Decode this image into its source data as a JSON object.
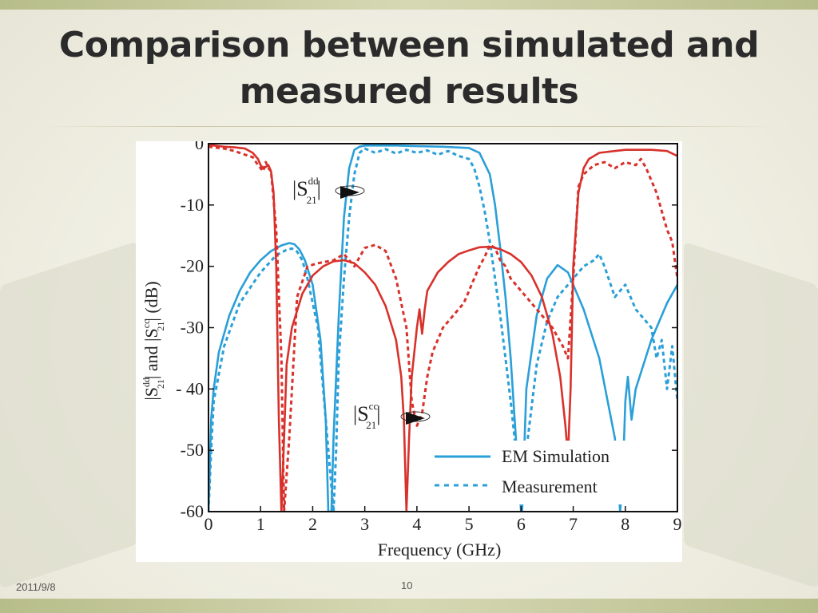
{
  "slide": {
    "title_line1": "Comparison between simulated and",
    "title_line2": "measured results",
    "date": "2011/9/8",
    "page_number": "10"
  },
  "colors": {
    "blue": "#2a9fd8",
    "red": "#d8312b",
    "accent_band": "#c8cc9c"
  },
  "chart_data": {
    "type": "line",
    "xlabel": "Frequency (GHz)",
    "ylabel_parts": [
      "|S",
      "dd",
      "21",
      "| and |S",
      "cc",
      "21",
      "| (dB)"
    ],
    "xlim": [
      0,
      9
    ],
    "ylim": [
      -60,
      0
    ],
    "x_ticks": [
      "0",
      "1",
      "2",
      "3",
      "4",
      "5",
      "6",
      "7",
      "8",
      "9"
    ],
    "y_ticks": [
      "0",
      "-10",
      "-20",
      "-30",
      "- 40",
      "-50",
      "-60"
    ],
    "grid": false,
    "legend_position": "bottom-right",
    "legend": [
      {
        "label": "EM Simulation",
        "style": "solid"
      },
      {
        "label": "Measurement",
        "style": "dashed"
      }
    ],
    "annotations": [
      {
        "base": "|S",
        "sup": "dd",
        "sub": "21",
        "tail": "|",
        "points_to": [
          2.7,
          -7
        ]
      },
      {
        "base": "|S",
        "sup": "cc",
        "sub": "21",
        "tail": "|",
        "points_to": [
          4.1,
          -44.5
        ]
      }
    ],
    "series": [
      {
        "label": "Sdd21 EM Simulation",
        "color": "blue",
        "dash": false,
        "x": [
          0.0,
          0.05,
          0.1,
          0.2,
          0.4,
          0.6,
          0.8,
          1.0,
          1.2,
          1.4,
          1.55,
          1.65,
          1.75,
          1.85,
          2.0,
          2.15,
          2.25,
          2.3,
          2.33,
          2.36,
          2.4,
          2.5,
          2.6,
          2.7,
          2.8,
          2.9,
          3.0,
          3.3,
          3.6,
          4.0,
          4.5,
          5.0,
          5.2,
          5.4,
          5.5,
          5.6,
          5.7,
          5.8,
          5.9,
          6.0,
          6.02,
          6.1,
          6.3,
          6.5,
          6.7,
          6.9,
          7.2,
          7.5,
          7.8,
          7.9,
          7.95,
          8.0,
          8.05,
          8.12,
          8.2,
          8.5,
          8.8,
          9.0
        ],
        "y": [
          -60,
          -45,
          -40,
          -34,
          -28,
          -24,
          -21,
          -19,
          -17.5,
          -16.6,
          -16.2,
          -16.4,
          -17.3,
          -19,
          -23,
          -32,
          -45,
          -60,
          -60,
          -60,
          -48,
          -28,
          -12,
          -4,
          -1,
          -0.5,
          -0.3,
          -0.3,
          -0.3,
          -0.4,
          -0.5,
          -0.7,
          -1.5,
          -5,
          -10,
          -17,
          -25,
          -35,
          -48,
          -60,
          -60,
          -40,
          -28,
          -22,
          -19.8,
          -21,
          -27,
          -35,
          -48,
          -60,
          -55,
          -42,
          -38,
          -45,
          -40,
          -32,
          -26,
          -23
        ]
      },
      {
        "label": "Sdd21 Measurement",
        "color": "blue",
        "dash": true,
        "x": [
          0.0,
          0.05,
          0.1,
          0.3,
          0.6,
          1.0,
          1.3,
          1.5,
          1.6,
          1.7,
          1.8,
          1.9,
          2.1,
          2.25,
          2.35,
          2.4,
          2.45,
          2.5,
          2.6,
          2.7,
          2.8,
          2.9,
          3.0,
          3.2,
          3.4,
          3.6,
          3.8,
          4.0,
          4.2,
          4.4,
          4.6,
          4.8,
          5.0,
          5.1,
          5.2,
          5.3,
          5.4,
          5.5,
          5.6,
          5.7,
          5.8,
          5.9,
          6.0,
          6.05,
          6.1,
          6.3,
          6.5,
          6.7,
          6.8,
          7.0,
          7.2,
          7.4,
          7.5,
          7.6,
          7.8,
          8.0,
          8.2,
          8.4,
          8.5,
          8.6,
          8.7,
          8.8,
          8.9,
          9.0
        ],
        "y": [
          -60,
          -50,
          -42,
          -33,
          -26,
          -21,
          -18.2,
          -17.3,
          -17.1,
          -17.6,
          -19,
          -22,
          -30,
          -45,
          -55,
          -60,
          -50,
          -35,
          -22,
          -12,
          -5,
          -1.5,
          -0.8,
          -1.5,
          -0.9,
          -1.6,
          -1.0,
          -1.5,
          -1.1,
          -1.8,
          -1.2,
          -2.0,
          -2.5,
          -4,
          -7,
          -11,
          -16,
          -22,
          -28,
          -35,
          -42,
          -50,
          -56,
          -58,
          -50,
          -36,
          -29,
          -25,
          -24,
          -22,
          -20,
          -19,
          -18,
          -20,
          -25,
          -23,
          -27,
          -29,
          -30,
          -35,
          -32,
          -40,
          -33,
          -42
        ]
      },
      {
        "label": "Scc21 EM Simulation",
        "color": "red",
        "dash": false,
        "x": [
          0.0,
          0.1,
          0.3,
          0.5,
          0.7,
          0.85,
          0.95,
          1.0,
          1.05,
          1.1,
          1.15,
          1.2,
          1.25,
          1.3,
          1.35,
          1.4,
          1.45,
          1.5,
          1.6,
          1.8,
          2.0,
          2.2,
          2.4,
          2.6,
          2.8,
          3.0,
          3.2,
          3.4,
          3.6,
          3.7,
          3.75,
          3.8,
          3.85,
          3.9,
          4.0,
          4.05,
          4.1,
          4.15,
          4.2,
          4.4,
          4.6,
          4.8,
          5.0,
          5.2,
          5.4,
          5.6,
          5.8,
          6.0,
          6.2,
          6.4,
          6.6,
          6.75,
          6.85,
          6.9,
          6.95,
          7.0,
          7.1,
          7.2,
          7.3,
          7.5,
          7.8,
          8.0,
          8.5,
          8.8,
          9.0
        ],
        "y": [
          -0.2,
          -0.3,
          -0.5,
          -0.6,
          -0.8,
          -1.5,
          -2.5,
          -3.5,
          -4,
          -3.8,
          -3.5,
          -4.5,
          -8,
          -20,
          -45,
          -60,
          -48,
          -36,
          -30,
          -24.5,
          -21.5,
          -20,
          -19.2,
          -19,
          -19.5,
          -21,
          -23,
          -26.5,
          -32,
          -38,
          -45,
          -60,
          -48,
          -38,
          -30,
          -27,
          -31,
          -27,
          -24,
          -21,
          -19.3,
          -18,
          -17.4,
          -16.9,
          -16.8,
          -17.2,
          -18,
          -19.3,
          -21.5,
          -25,
          -31,
          -38,
          -46,
          -51,
          -40,
          -20,
          -8,
          -4,
          -2.5,
          -1.5,
          -1.2,
          -1.0,
          -1.0,
          -1.2,
          -2
        ]
      },
      {
        "label": "Scc21 Measurement",
        "color": "red",
        "dash": true,
        "x": [
          0.0,
          0.1,
          0.3,
          0.5,
          0.7,
          0.85,
          0.95,
          1.05,
          1.1,
          1.15,
          1.2,
          1.3,
          1.4,
          1.45,
          1.55,
          1.7,
          1.9,
          2.1,
          2.4,
          2.6,
          2.8,
          3.0,
          3.2,
          3.4,
          3.6,
          3.8,
          3.9,
          4.0,
          4.1,
          4.2,
          4.3,
          4.5,
          4.7,
          4.9,
          5.0,
          5.1,
          5.2,
          5.3,
          5.4,
          5.5,
          5.6,
          5.7,
          5.8,
          6.0,
          6.2,
          6.4,
          6.6,
          6.8,
          6.9,
          7.0,
          7.1,
          7.2,
          7.4,
          7.6,
          7.8,
          8.0,
          8.2,
          8.3,
          8.4,
          8.6,
          8.7,
          8.8,
          8.9,
          9.0
        ],
        "y": [
          -0.5,
          -0.6,
          -0.8,
          -1.2,
          -1.8,
          -2.2,
          -3.5,
          -4.5,
          -3,
          -4,
          -4.5,
          -14,
          -35,
          -60,
          -48,
          -25,
          -20,
          -19.5,
          -19,
          -18,
          -20,
          -17,
          -16.5,
          -17.5,
          -22,
          -30,
          -42,
          -46,
          -44,
          -38,
          -34,
          -30,
          -28,
          -26,
          -24,
          -22,
          -20,
          -18.5,
          -16.5,
          -17,
          -19,
          -20,
          -22,
          -24,
          -26,
          -28,
          -30,
          -33,
          -35,
          -22,
          -7,
          -5,
          -3.5,
          -3,
          -4,
          -3,
          -3.5,
          -2.5,
          -4,
          -8,
          -11,
          -14,
          -16,
          -22
        ]
      }
    ]
  }
}
